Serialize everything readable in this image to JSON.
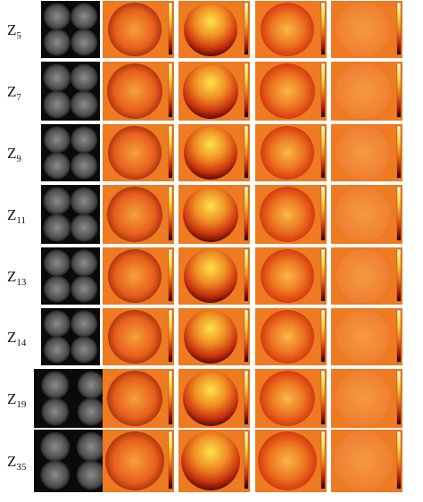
{
  "rows": [
    {
      "label": "Z",
      "subscript": "5"
    },
    {
      "label": "Z",
      "subscript": "7"
    },
    {
      "label": "Z",
      "subscript": "9"
    },
    {
      "label": "Z",
      "subscript": "11"
    },
    {
      "label": "Z",
      "subscript": "13"
    },
    {
      "label": "Z",
      "subscript": "14"
    },
    {
      "label": "Z",
      "subscript": "19"
    },
    {
      "label": "Z",
      "subscript": "35"
    }
  ]
}
